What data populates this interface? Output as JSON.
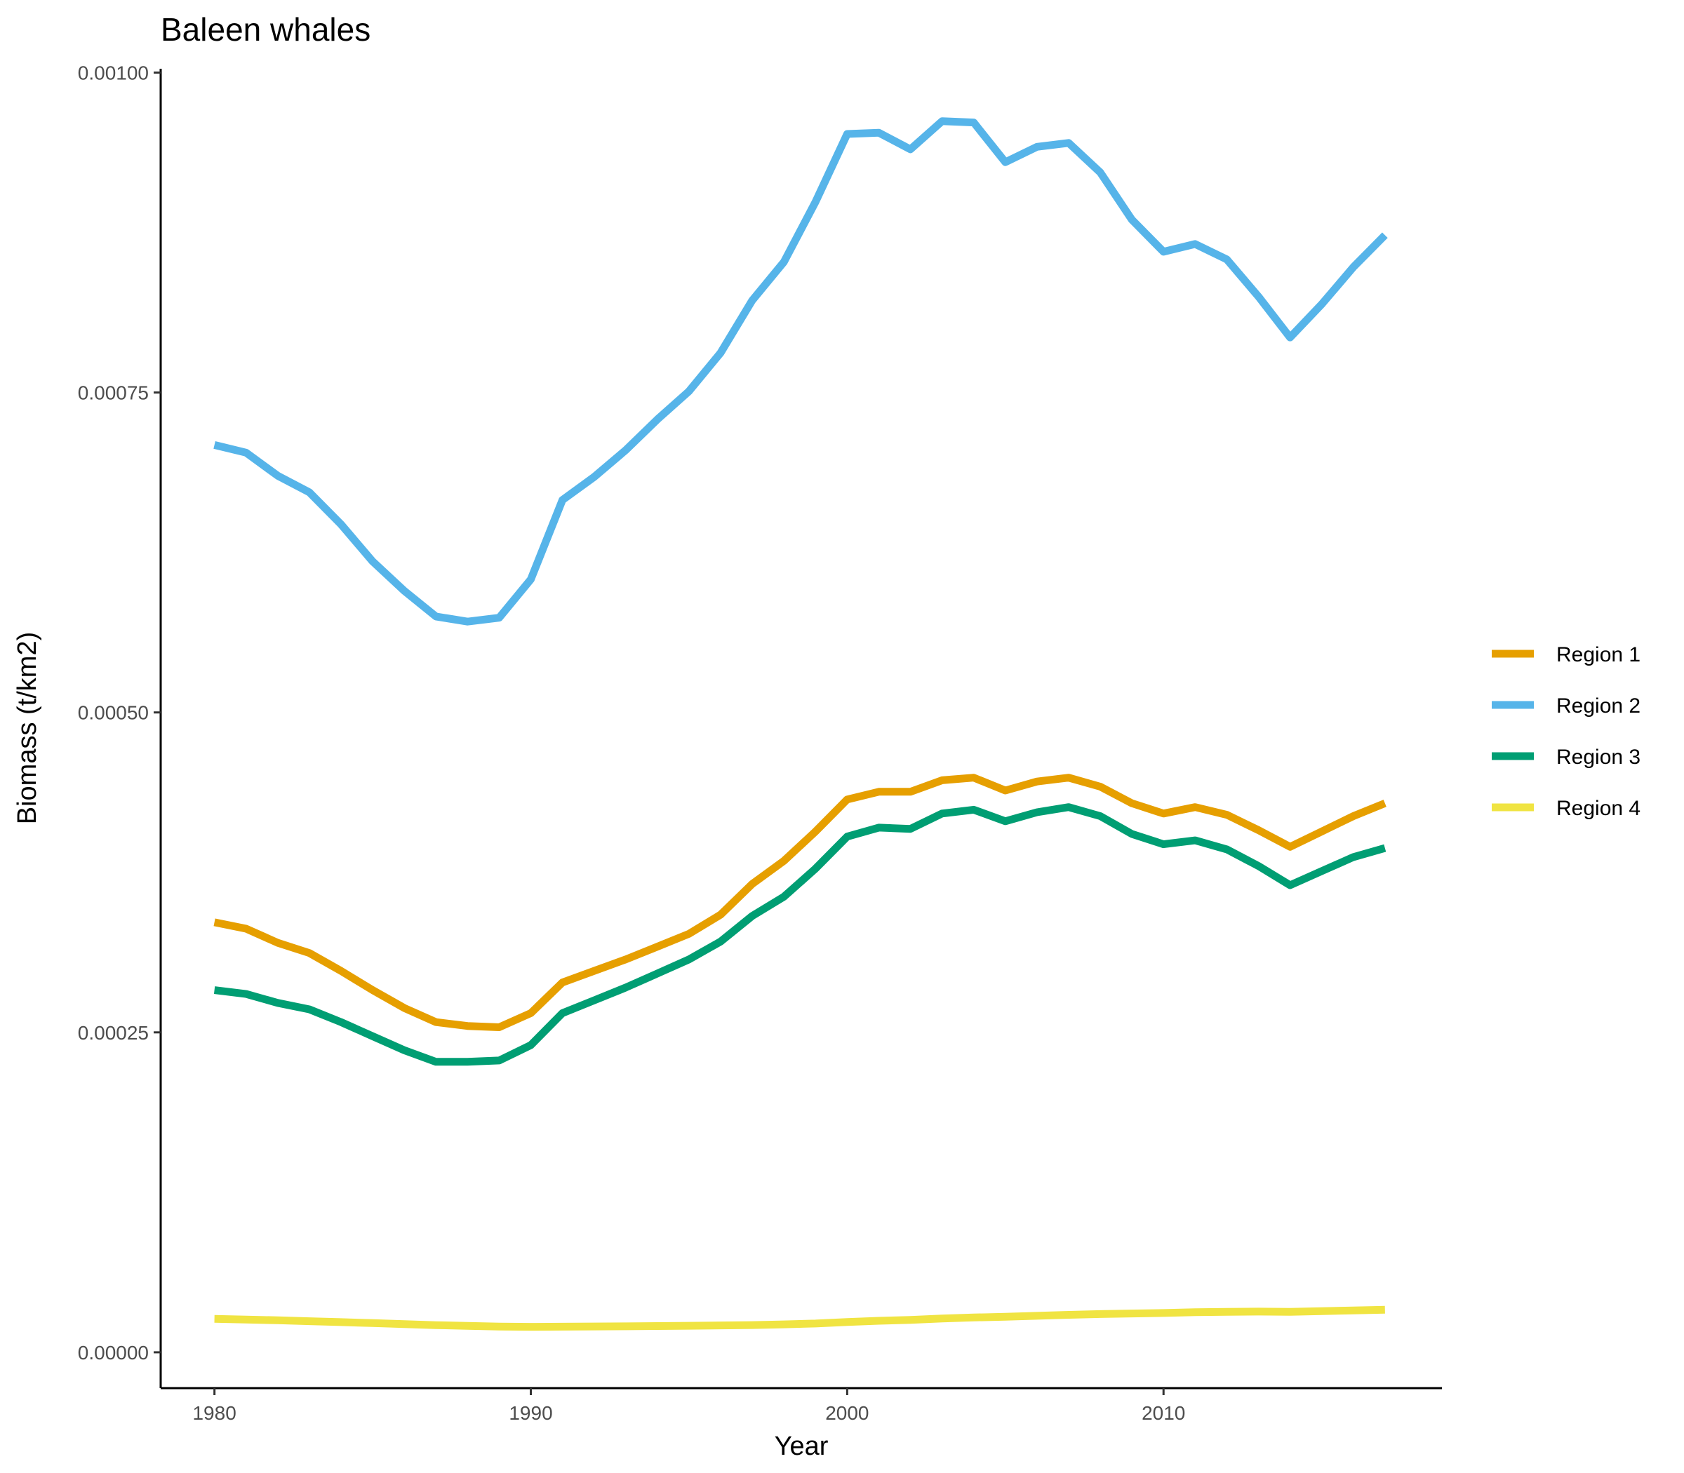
{
  "chart_data": {
    "type": "line",
    "title": "Baleen whales",
    "xlabel": "Year",
    "ylabel": "Biomass (t/km2)",
    "xlim": [
      1978.3,
      2018.8
    ],
    "ylim": [
      -2.8e-05,
      0.001003
    ],
    "x_ticks": [
      1980,
      1990,
      2000,
      2010
    ],
    "x_tick_labels": [
      "1980",
      "1990",
      "2000",
      "2010"
    ],
    "y_ticks": [
      0,
      0.00025,
      0.0005,
      0.00075,
      0.001
    ],
    "y_tick_labels": [
      "0.00000",
      "0.00025",
      "0.00050",
      "0.00075",
      "0.00100"
    ],
    "grid": false,
    "legend_position": "right",
    "x": [
      1980,
      1981,
      1982,
      1983,
      1984,
      1985,
      1986,
      1987,
      1988,
      1989,
      1990,
      1991,
      1992,
      1993,
      1994,
      1995,
      1996,
      1997,
      1998,
      1999,
      2000,
      2001,
      2002,
      2003,
      2004,
      2005,
      2006,
      2007,
      2008,
      2009,
      2010,
      2011,
      2012,
      2013,
      2014,
      2015,
      2016,
      2017
    ],
    "series": [
      {
        "name": "Region 1",
        "color": "#E69F00",
        "values": [
          0.000336,
          0.000331,
          0.00032,
          0.000312,
          0.000298,
          0.000283,
          0.000269,
          0.000258,
          0.000255,
          0.000254,
          0.000265,
          0.000289,
          0.000298,
          0.000307,
          0.000317,
          0.000327,
          0.000342,
          0.000366,
          0.000384,
          0.000407,
          0.000432,
          0.000438,
          0.000438,
          0.000447,
          0.000449,
          0.000439,
          0.000446,
          0.000449,
          0.000442,
          0.000429,
          0.000421,
          0.000426,
          0.00042,
          0.000408,
          0.000395,
          0.000407,
          0.000419,
          0.000429
        ]
      },
      {
        "name": "Region 2",
        "color": "#56B4E9",
        "values": [
          0.000709,
          0.000703,
          0.000685,
          0.000672,
          0.000647,
          0.000618,
          0.000595,
          0.000575,
          0.000571,
          0.000574,
          0.000604,
          0.000666,
          0.000684,
          0.000705,
          0.000729,
          0.000751,
          0.000781,
          0.000822,
          0.000852,
          0.000899,
          0.000952,
          0.000953,
          0.00094,
          0.000962,
          0.000961,
          0.00093,
          0.000942,
          0.000945,
          0.000922,
          0.000885,
          0.00086,
          0.000866,
          0.000854,
          0.000825,
          0.000793,
          0.000819,
          0.000848,
          0.000873
        ]
      },
      {
        "name": "Region 3",
        "color": "#009E73",
        "values": [
          0.000283,
          0.00028,
          0.000273,
          0.000268,
          0.000258,
          0.000247,
          0.000236,
          0.000227,
          0.000227,
          0.000228,
          0.00024,
          0.000265,
          0.000275,
          0.000285,
          0.000296,
          0.000307,
          0.000321,
          0.000341,
          0.000356,
          0.000378,
          0.000403,
          0.00041,
          0.000409,
          0.000421,
          0.000424,
          0.000415,
          0.000422,
          0.000426,
          0.000419,
          0.000405,
          0.000397,
          0.0004,
          0.000393,
          0.00038,
          0.000365,
          0.000376,
          0.000387,
          0.000394
        ]
      },
      {
        "name": "Region 4",
        "color": "#F0E442",
        "values": [
          2.61e-05,
          2.56e-05,
          2.5e-05,
          2.43e-05,
          2.36e-05,
          2.28e-05,
          2.2e-05,
          2.12e-05,
          2.06e-05,
          2.01e-05,
          1.99e-05,
          2e-05,
          2.02e-05,
          2.03e-05,
          2.05e-05,
          2.07e-05,
          2.1e-05,
          2.13e-05,
          2.18e-05,
          2.25e-05,
          2.37e-05,
          2.46e-05,
          2.53e-05,
          2.64e-05,
          2.72e-05,
          2.78e-05,
          2.85e-05,
          2.93e-05,
          2.99e-05,
          3.03e-05,
          3.07e-05,
          3.13e-05,
          3.16e-05,
          3.18e-05,
          3.16e-05,
          3.22e-05,
          3.27e-05,
          3.32e-05
        ]
      }
    ]
  }
}
